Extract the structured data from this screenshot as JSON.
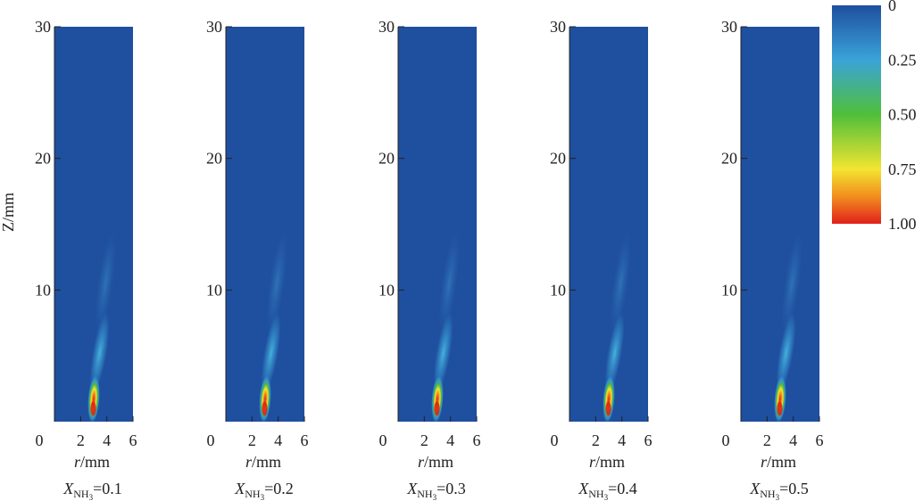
{
  "chart_data": {
    "type": "heatmap",
    "ylabel": "Z/mm",
    "xlabel_var": "r",
    "xlabel_unit": "/mm",
    "xlim": [
      0,
      6
    ],
    "ylim": [
      0,
      30
    ],
    "x_ticks": [
      0,
      2,
      4,
      6
    ],
    "y_ticks": [
      10,
      20,
      30
    ],
    "x_tick_labels": [
      "0",
      "2",
      "4",
      "6"
    ],
    "y_tick_labels": [
      "10",
      "20",
      "30"
    ],
    "caption_var": "X",
    "caption_sub": "NH",
    "caption_subsub": "3",
    "panels": [
      {
        "caption_value": "=0.1",
        "x_nh3": 0.1
      },
      {
        "caption_value": "=0.2",
        "x_nh3": 0.2
      },
      {
        "caption_value": "=0.3",
        "x_nh3": 0.3
      },
      {
        "caption_value": "=0.4",
        "x_nh3": 0.4
      },
      {
        "caption_value": "=0.5",
        "x_nh3": 0.5
      }
    ],
    "colorbar": {
      "range": [
        0,
        1
      ],
      "labels": [
        "0",
        "0.25",
        "0.50",
        "0.75",
        "1.00"
      ],
      "label_values": [
        0,
        0.25,
        0.5,
        0.75,
        1.0
      ],
      "colors": [
        "#1f4f9f",
        "#3aa3d8",
        "#4fbf3a",
        "#f2e531",
        "#f28a1e",
        "#e0201b"
      ],
      "color_stops": [
        0,
        0.25,
        0.5,
        0.75,
        0.88,
        1.0
      ]
    },
    "background_color": "#1f4f9f"
  }
}
